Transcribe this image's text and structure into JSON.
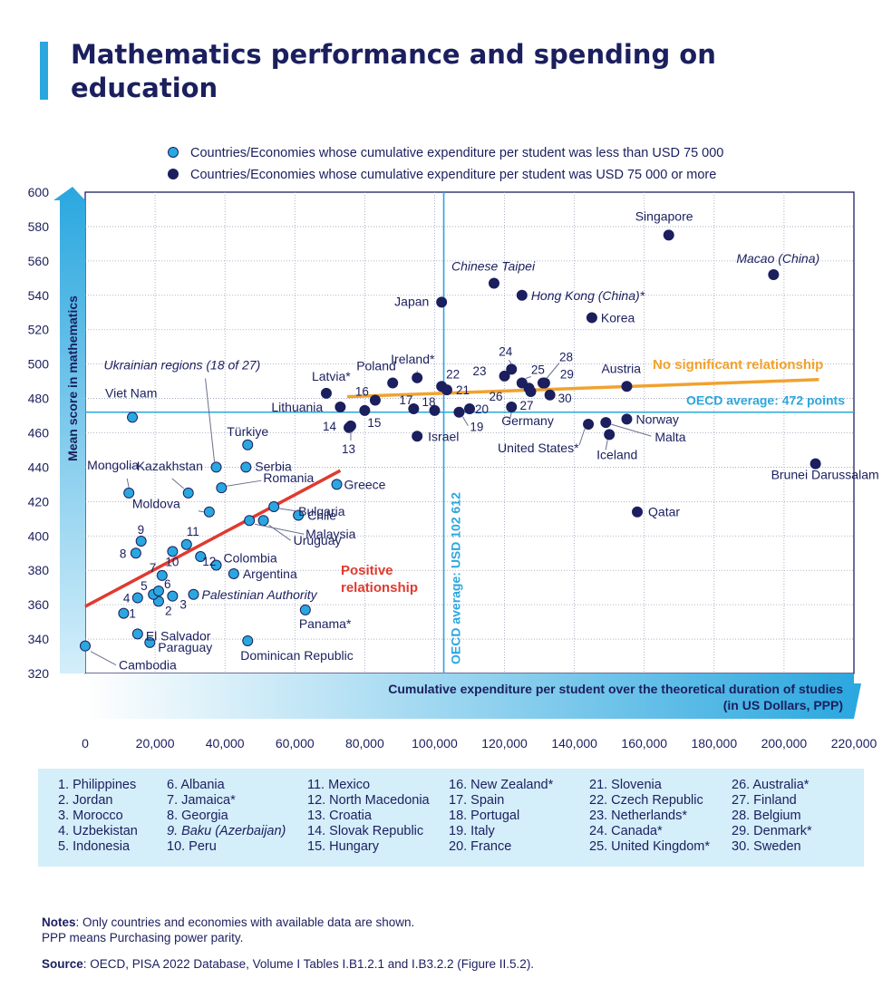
{
  "title": "Mathematics performance and spending on education",
  "chart_data": {
    "type": "scatter",
    "ylabel": "Mean score in mathematics",
    "xlabel_line1": "Cumulative expenditure per student over the theoretical duration of studies",
    "xlabel_line2": "(in US Dollars, PPP)",
    "xlim": [
      0,
      220000
    ],
    "ylim": [
      320,
      600
    ],
    "x_ticks": [
      "0",
      "20,000",
      "40,000",
      "60,000",
      "80,000",
      "100,000",
      "120,000",
      "140,000",
      "160,000",
      "180,000",
      "200,000",
      "220,000"
    ],
    "y_ticks": [
      "600",
      "580",
      "560",
      "540",
      "520",
      "500",
      "480",
      "460",
      "440",
      "420",
      "400",
      "380",
      "360",
      "340",
      "320"
    ],
    "legend": [
      {
        "label": "Countries/Economies whose cumulative expenditure per student was less than USD 75 000",
        "color": "#2aa7df"
      },
      {
        "label": "Countries/Economies whose cumulative expenditure per student was USD 75 000 or more",
        "color": "#1b1f5e"
      }
    ],
    "oecd_avg_y": 472,
    "oecd_avg_y_label": "OECD average: 472 points",
    "oecd_avg_x": 102612,
    "oecd_avg_x_label": "OECD average: USD 102 612",
    "trend_low": {
      "x": [
        0,
        73000
      ],
      "y": [
        359,
        438
      ],
      "label1": "Positive",
      "label2": "relationship",
      "color": "#e03a2f"
    },
    "trend_high": {
      "x": [
        75000,
        210000
      ],
      "y": [
        481,
        491
      ],
      "label": "No significant relationship",
      "color": "#f0a230"
    },
    "annotation_ukraine": "Ukrainian regions (18 of 27)",
    "series": [
      {
        "name": "Countries/Economies whose cumulative expenditure per student was less than USD 75 000",
        "color": "#2aa7df",
        "points": [
          {
            "label": "Cambodia",
            "x": 0,
            "y": 336
          },
          {
            "label": "Viet Nam",
            "x": 13500,
            "y": 469
          },
          {
            "label": "Mongolia",
            "x": 12500,
            "y": 425
          },
          {
            "label": "1",
            "x": 11000,
            "y": 355
          },
          {
            "label": "2",
            "x": 21000,
            "y": 362
          },
          {
            "label": "3",
            "x": 25000,
            "y": 365
          },
          {
            "label": "4",
            "x": 15000,
            "y": 364
          },
          {
            "label": "5",
            "x": 19500,
            "y": 366
          },
          {
            "label": "6",
            "x": 21000,
            "y": 368
          },
          {
            "label": "7",
            "x": 22000,
            "y": 377
          },
          {
            "label": "8",
            "x": 14500,
            "y": 390
          },
          {
            "label": "9",
            "x": 16000,
            "y": 397
          },
          {
            "label": "10",
            "x": 25000,
            "y": 391
          },
          {
            "label": "11",
            "x": 29000,
            "y": 395
          },
          {
            "label": "12",
            "x": 33000,
            "y": 388
          },
          {
            "label": "El Salvador",
            "x": 15000,
            "y": 343
          },
          {
            "label": "Paraguay",
            "x": 18500,
            "y": 338
          },
          {
            "label": "Palestinian Authority",
            "x": 31000,
            "y": 366
          },
          {
            "label": "Colombia",
            "x": 37500,
            "y": 383
          },
          {
            "label": "Argentina",
            "x": 42500,
            "y": 378
          },
          {
            "label": "Dominican Republic",
            "x": 46500,
            "y": 339
          },
          {
            "label": "Kazakhstan",
            "x": 29500,
            "y": 425
          },
          {
            "label": "Moldova",
            "x": 35500,
            "y": 414
          },
          {
            "label": "Ukrainian regions (18 of 27)",
            "x": 37500,
            "y": 440
          },
          {
            "label": "Türkiye",
            "x": 46500,
            "y": 453
          },
          {
            "label": "Serbia",
            "x": 46000,
            "y": 440
          },
          {
            "label": "Romania",
            "x": 39000,
            "y": 428
          },
          {
            "label": "Bulgaria",
            "x": 54000,
            "y": 417
          },
          {
            "label": "Malaysia",
            "x": 47000,
            "y": 409
          },
          {
            "label": "Uruguay",
            "x": 51000,
            "y": 409
          },
          {
            "label": "Chile",
            "x": 61000,
            "y": 412
          },
          {
            "label": "Greece",
            "x": 72000,
            "y": 430
          },
          {
            "label": "Panama*",
            "x": 63000,
            "y": 357
          }
        ]
      },
      {
        "name": "Countries/Economies whose cumulative expenditure per student was USD 75 000 or more",
        "color": "#1b1f5e",
        "points": [
          {
            "label": "Latvia*",
            "x": 69000,
            "y": 483
          },
          {
            "label": "Lithuania",
            "x": 73000,
            "y": 475
          },
          {
            "label": "14",
            "x": 75500,
            "y": 463
          },
          {
            "label": "13",
            "x": 76000,
            "y": 464
          },
          {
            "label": "16",
            "x": 83000,
            "y": 479
          },
          {
            "label": "15",
            "x": 80000,
            "y": 473
          },
          {
            "label": "Poland",
            "x": 88000,
            "y": 489
          },
          {
            "label": "Ireland*",
            "x": 95000,
            "y": 492
          },
          {
            "label": "17",
            "x": 94000,
            "y": 474
          },
          {
            "label": "18",
            "x": 100000,
            "y": 473
          },
          {
            "label": "Israel",
            "x": 95000,
            "y": 458
          },
          {
            "label": "Japan",
            "x": 102000,
            "y": 536
          },
          {
            "label": "22",
            "x": 102000,
            "y": 487
          },
          {
            "label": "21",
            "x": 103500,
            "y": 485
          },
          {
            "label": "19",
            "x": 107000,
            "y": 472
          },
          {
            "label": "20",
            "x": 110000,
            "y": 474
          },
          {
            "label": "Chinese Taipei",
            "x": 117000,
            "y": 547
          },
          {
            "label": "Hong Kong (China)*",
            "x": 125000,
            "y": 540
          },
          {
            "label": "23",
            "x": 120000,
            "y": 493
          },
          {
            "label": "24",
            "x": 122000,
            "y": 497
          },
          {
            "label": "Germany",
            "x": 122000,
            "y": 475
          },
          {
            "label": "25",
            "x": 125000,
            "y": 489
          },
          {
            "label": "26",
            "x": 127000,
            "y": 486
          },
          {
            "label": "27",
            "x": 127500,
            "y": 484
          },
          {
            "label": "28",
            "x": 131000,
            "y": 489
          },
          {
            "label": "29",
            "x": 131500,
            "y": 489
          },
          {
            "label": "30",
            "x": 133000,
            "y": 482
          },
          {
            "label": "Korea",
            "x": 145000,
            "y": 527
          },
          {
            "label": "Austria",
            "x": 155000,
            "y": 487
          },
          {
            "label": "United States*",
            "x": 144000,
            "y": 465
          },
          {
            "label": "Iceland",
            "x": 150000,
            "y": 459
          },
          {
            "label": "Malta",
            "x": 149000,
            "y": 466
          },
          {
            "label": "Norway",
            "x": 155000,
            "y": 468
          },
          {
            "label": "Singapore",
            "x": 167000,
            "y": 575
          },
          {
            "label": "Qatar",
            "x": 158000,
            "y": 414
          },
          {
            "label": "Macao (China)",
            "x": 197000,
            "y": 552
          },
          {
            "label": "Brunei Darussalam",
            "x": 209000,
            "y": 442
          }
        ]
      }
    ]
  },
  "key_columns": [
    [
      "1. Philippines",
      "2. Jordan",
      "3. Morocco",
      "4. Uzbekistan",
      "5. Indonesia"
    ],
    [
      "6. Albania",
      "7. Jamaica*",
      "8. Georgia",
      "9. Baku (Azerbaijan)",
      "10. Peru"
    ],
    [
      "11. Mexico",
      "12. North Macedonia",
      "13. Croatia",
      "14. Slovak Republic",
      "15. Hungary"
    ],
    [
      "16. New Zealand*",
      "17. Spain",
      "18. Portugal",
      "19. Italy",
      "20. France"
    ],
    [
      "21. Slovenia",
      "22. Czech Republic",
      "23. Netherlands*",
      "24. Canada*",
      "25. United Kingdom*"
    ],
    [
      "26. Australia*",
      "27. Finland",
      "28. Belgium",
      "29. Denmark*",
      "30. Sweden"
    ]
  ],
  "notes": {
    "label": "Notes",
    "line1": ": Only countries and economies with available data are shown.",
    "line2": "PPP means Purchasing power parity."
  },
  "source": {
    "label": "Source",
    "text": ": OECD, PISA 2022 Database, Volume I Tables I.B1.2.1 and I.B3.2.2 (Figure II.5.2)."
  }
}
